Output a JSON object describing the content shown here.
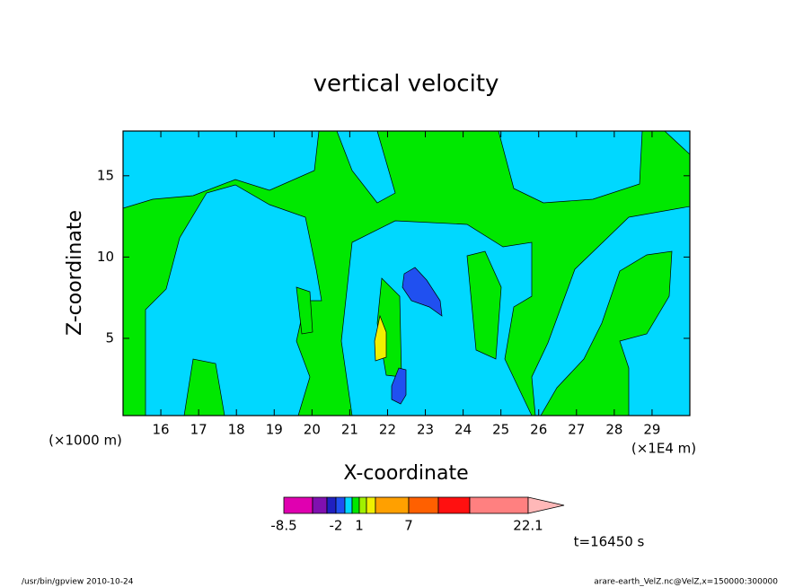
{
  "chart_data": {
    "type": "contour",
    "title": "vertical velocity",
    "xlabel": "X-coordinate",
    "ylabel": "Z-coordinate",
    "x_unit_left": "(×1000 m)",
    "x_unit_right": "(×1E4 m)",
    "xlim": [
      15,
      30
    ],
    "xticks": [
      16,
      17,
      18,
      19,
      20,
      21,
      22,
      23,
      24,
      25,
      26,
      27,
      28,
      29
    ],
    "ylim": [
      0.25,
      17.75
    ],
    "yticks": [
      5,
      10,
      15
    ],
    "colorbar": {
      "colors": [
        "#e000b0",
        "#8010b0",
        "#2020c0",
        "#2050f0",
        "#00d8ff",
        "#00e800",
        "#a0f000",
        "#f0f000",
        "#ffa000",
        "#ff6000",
        "#ff1010",
        "#ff8080",
        "#ffb8b8"
      ],
      "ticks": [
        -8.5,
        -2,
        1,
        7,
        22.1
      ]
    },
    "time_label": "t=16450 s",
    "footer_left": "/usr/bin/gpview  2010-10-24",
    "footer_right": "arare-earth_VelZ.nc@VelZ,x=150000:300000"
  }
}
